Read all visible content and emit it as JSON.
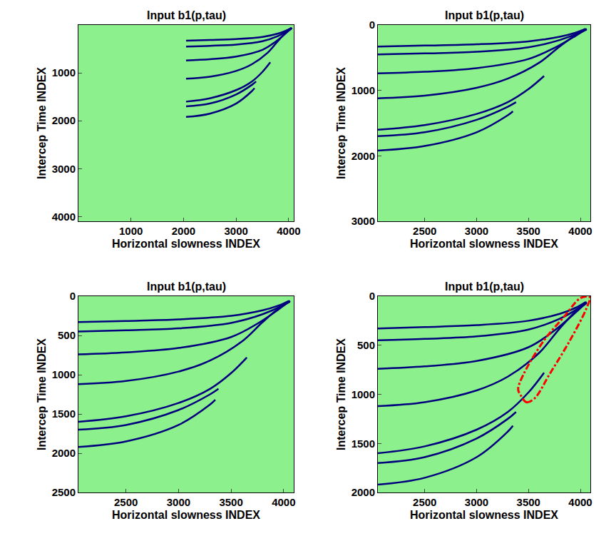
{
  "chart_data": [
    {
      "type": "line",
      "title": "Input b1(p,tau)",
      "x_label": "Horizontal slowness INDEX",
      "y_label": "Intercep Time INDEX",
      "xlim": [
        1,
        4096
      ],
      "xticks": [
        1000,
        2000,
        3000,
        4000
      ],
      "ylim": [
        4096,
        1
      ],
      "yticks": [
        1000,
        2000,
        3000,
        4000
      ],
      "series": [
        {
          "color": "#00007f",
          "x": [
            2048,
            2500,
            3000,
            3500,
            3800,
            3950,
            4050
          ],
          "y": [
            330,
            315,
            295,
            250,
            180,
            120,
            60
          ]
        },
        {
          "color": "#00007f",
          "x": [
            2048,
            2500,
            3000,
            3500,
            3800,
            4000,
            4060
          ],
          "y": [
            450,
            435,
            410,
            340,
            230,
            110,
            60
          ]
        },
        {
          "color": "#00007f",
          "x": [
            2048,
            2500,
            3000,
            3500,
            3750,
            3950,
            4060
          ],
          "y": [
            740,
            715,
            660,
            520,
            350,
            170,
            60
          ]
        },
        {
          "color": "#00007f",
          "x": [
            2048,
            2500,
            3000,
            3300,
            3600,
            3800,
            3950,
            4060
          ],
          "y": [
            1120,
            1080,
            960,
            820,
            580,
            330,
            160,
            70
          ]
        },
        {
          "color": "#00007f",
          "x": [
            2048,
            2500,
            3000,
            3300,
            3500,
            3650
          ],
          "y": [
            1600,
            1530,
            1360,
            1180,
            980,
            780
          ]
        },
        {
          "color": "#00007f",
          "x": [
            2048,
            2500,
            3000,
            3300,
            3380
          ],
          "y": [
            1700,
            1640,
            1450,
            1250,
            1180
          ]
        },
        {
          "color": "#00007f",
          "x": [
            2048,
            2500,
            3000,
            3300,
            3350
          ],
          "y": [
            1920,
            1850,
            1640,
            1380,
            1320
          ]
        }
      ]
    },
    {
      "type": "line",
      "title": "Input b1(p,tau)",
      "x_label": "Horizontal slowness INDEX",
      "y_label": "Intercep Time INDEX",
      "xlim": [
        2048,
        4096
      ],
      "xticks": [
        2500,
        3000,
        3500,
        4000
      ],
      "ylim": [
        3000,
        0
      ],
      "yticks": [
        0,
        1000,
        2000,
        3000
      ],
      "series": [
        {
          "color": "#00007f",
          "x": [
            2048,
            2500,
            3000,
            3500,
            3800,
            3950,
            4050
          ],
          "y": [
            330,
            315,
            295,
            250,
            180,
            120,
            60
          ]
        },
        {
          "color": "#00007f",
          "x": [
            2048,
            2500,
            3000,
            3500,
            3800,
            4000,
            4060
          ],
          "y": [
            450,
            435,
            410,
            340,
            230,
            110,
            60
          ]
        },
        {
          "color": "#00007f",
          "x": [
            2048,
            2500,
            3000,
            3500,
            3750,
            3950,
            4060
          ],
          "y": [
            740,
            715,
            660,
            520,
            350,
            170,
            60
          ]
        },
        {
          "color": "#00007f",
          "x": [
            2048,
            2500,
            3000,
            3300,
            3600,
            3800,
            3950,
            4060
          ],
          "y": [
            1120,
            1080,
            960,
            820,
            580,
            330,
            160,
            70
          ]
        },
        {
          "color": "#00007f",
          "x": [
            2048,
            2500,
            3000,
            3300,
            3500,
            3650
          ],
          "y": [
            1600,
            1530,
            1360,
            1180,
            980,
            780
          ]
        },
        {
          "color": "#00007f",
          "x": [
            2048,
            2500,
            3000,
            3300,
            3380
          ],
          "y": [
            1700,
            1640,
            1450,
            1250,
            1180
          ]
        },
        {
          "color": "#00007f",
          "x": [
            2048,
            2500,
            3000,
            3300,
            3350
          ],
          "y": [
            1920,
            1850,
            1640,
            1380,
            1320
          ]
        }
      ]
    },
    {
      "type": "line",
      "title": "Input b1(p,tau)",
      "x_label": "Horizontal slowness INDEX",
      "y_label": "Intercep Time INDEX",
      "xlim": [
        2048,
        4096
      ],
      "xticks": [
        2500,
        3000,
        3500,
        4000
      ],
      "ylim": [
        2500,
        0
      ],
      "yticks": [
        0,
        500,
        1000,
        1500,
        2000,
        2500
      ],
      "series": [
        {
          "color": "#00007f",
          "x": [
            2048,
            2500,
            3000,
            3500,
            3800,
            3950,
            4050
          ],
          "y": [
            330,
            315,
            295,
            250,
            180,
            120,
            60
          ]
        },
        {
          "color": "#00007f",
          "x": [
            2048,
            2500,
            3000,
            3500,
            3800,
            4000,
            4060
          ],
          "y": [
            450,
            435,
            410,
            340,
            230,
            110,
            60
          ]
        },
        {
          "color": "#00007f",
          "x": [
            2048,
            2500,
            3000,
            3500,
            3750,
            3950,
            4060
          ],
          "y": [
            740,
            715,
            660,
            520,
            350,
            170,
            60
          ]
        },
        {
          "color": "#00007f",
          "x": [
            2048,
            2500,
            3000,
            3300,
            3600,
            3800,
            3950,
            4060
          ],
          "y": [
            1120,
            1080,
            960,
            820,
            580,
            330,
            160,
            70
          ]
        },
        {
          "color": "#00007f",
          "x": [
            2048,
            2500,
            3000,
            3300,
            3500,
            3650
          ],
          "y": [
            1600,
            1530,
            1360,
            1180,
            980,
            780
          ]
        },
        {
          "color": "#00007f",
          "x": [
            2048,
            2500,
            3000,
            3300,
            3380
          ],
          "y": [
            1700,
            1640,
            1450,
            1250,
            1180
          ]
        },
        {
          "color": "#00007f",
          "x": [
            2048,
            2500,
            3000,
            3300,
            3350
          ],
          "y": [
            1920,
            1850,
            1640,
            1380,
            1320
          ]
        }
      ]
    },
    {
      "type": "line",
      "title": "Input b1(p,tau)",
      "x_label": "Horizontal slowness INDEX",
      "y_label": "Intercep Time INDEX",
      "xlim": [
        2048,
        4096
      ],
      "xticks": [
        2500,
        3000,
        3500,
        4000
      ],
      "ylim": [
        2000,
        0
      ],
      "yticks": [
        0,
        500,
        1000,
        1500,
        2000
      ],
      "series": [
        {
          "color": "#00007f",
          "x": [
            2048,
            2500,
            3000,
            3500,
            3800,
            3950,
            4050
          ],
          "y": [
            330,
            315,
            295,
            250,
            180,
            120,
            60
          ]
        },
        {
          "color": "#00007f",
          "x": [
            2048,
            2500,
            3000,
            3500,
            3800,
            4000,
            4060
          ],
          "y": [
            450,
            435,
            410,
            340,
            230,
            110,
            60
          ]
        },
        {
          "color": "#00007f",
          "x": [
            2048,
            2500,
            3000,
            3500,
            3750,
            3950,
            4060
          ],
          "y": [
            740,
            715,
            660,
            520,
            350,
            170,
            60
          ]
        },
        {
          "color": "#00007f",
          "x": [
            2048,
            2500,
            3000,
            3300,
            3600,
            3800,
            3950,
            4060
          ],
          "y": [
            1120,
            1080,
            960,
            820,
            580,
            330,
            160,
            70
          ]
        },
        {
          "color": "#00007f",
          "x": [
            2048,
            2500,
            3000,
            3300,
            3500,
            3650
          ],
          "y": [
            1600,
            1530,
            1360,
            1180,
            980,
            780
          ]
        },
        {
          "color": "#00007f",
          "x": [
            2048,
            2500,
            3000,
            3300,
            3380
          ],
          "y": [
            1700,
            1640,
            1450,
            1250,
            1180
          ]
        },
        {
          "color": "#00007f",
          "x": [
            2048,
            2500,
            3000,
            3300,
            3350
          ],
          "y": [
            1920,
            1850,
            1640,
            1380,
            1320
          ]
        },
        {
          "color": "#ff0000",
          "line_style": "dashdot",
          "x": [
            3420,
            3480,
            3560,
            3700,
            3900,
            4060,
            4090,
            4000,
            3850,
            3650,
            3450,
            3400,
            3420
          ],
          "y": [
            1000,
            1080,
            1040,
            800,
            450,
            120,
            10,
            20,
            200,
            450,
            800,
            950,
            1000
          ]
        }
      ]
    }
  ]
}
